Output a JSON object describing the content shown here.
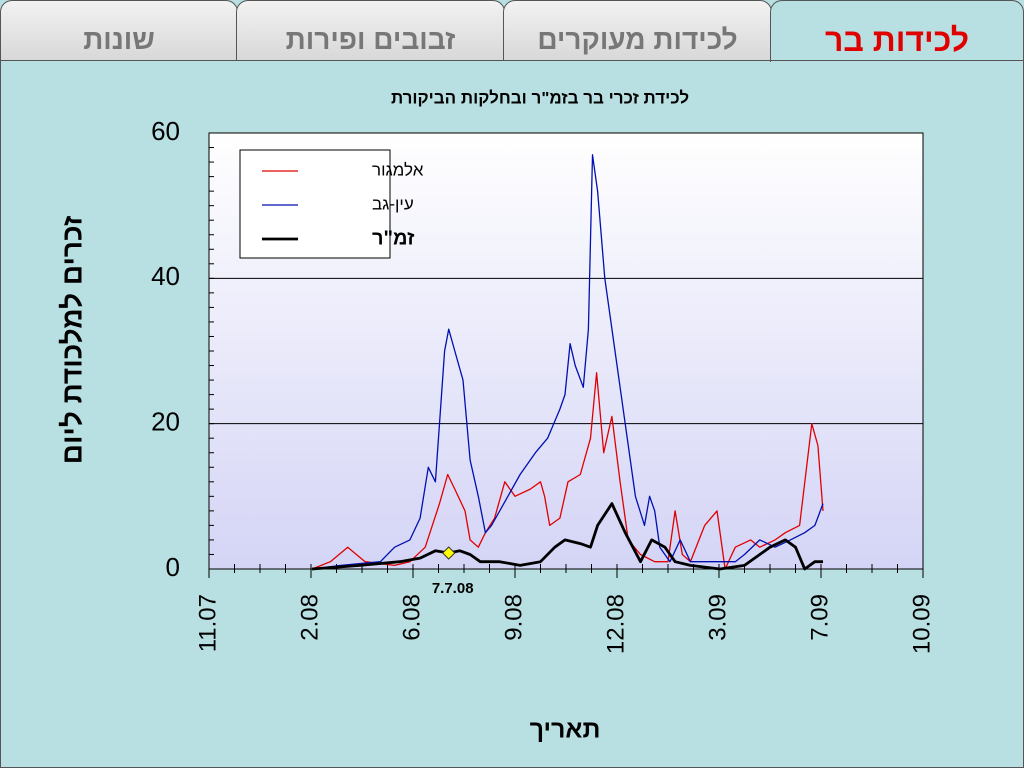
{
  "tabs": [
    "שונות",
    "זבובים ופירות",
    "לכידות מעוקרים",
    "לכידות בר"
  ],
  "active_tab": 3,
  "chart_data": {
    "type": "line",
    "title": "לכידת זכרי בר בזמ\"ר ובחלקות הביקורת",
    "y_label": "זכרים למלכודת ליום",
    "x_label": "תאריך",
    "ylim": [
      0,
      60
    ],
    "yticks": [
      0,
      20,
      40,
      60
    ],
    "grid": true,
    "xlim": [
      0,
      7
    ],
    "xticks": [
      {
        "value": 0,
        "label": "11.07"
      },
      {
        "value": 1,
        "label": "2.08"
      },
      {
        "value": 2,
        "label": "6.08"
      },
      {
        "value": 3,
        "label": "9.08"
      },
      {
        "value": 4,
        "label": "12.08"
      },
      {
        "value": 5,
        "label": "3.09"
      },
      {
        "value": 6,
        "label": "7.09"
      },
      {
        "value": 7,
        "label": "10.09"
      }
    ],
    "legend": "top-left",
    "series": [
      {
        "name": "אלמגור",
        "color": "#e00000",
        "width": 1.3,
        "x": [
          1.01,
          1.19,
          1.36,
          1.53,
          1.82,
          1.97,
          2.12,
          2.26,
          2.34,
          2.41,
          2.51,
          2.56,
          2.64,
          2.71,
          2.8,
          2.9,
          3.0,
          3.15,
          3.25,
          3.29,
          3.34,
          3.44,
          3.52,
          3.64,
          3.74,
          3.8,
          3.87,
          3.95,
          4.03,
          4.11,
          4.23,
          4.37,
          4.5,
          4.57,
          4.64,
          4.72,
          4.86,
          4.98,
          5.06,
          5.16,
          5.31,
          5.4,
          5.55,
          5.65,
          5.79,
          5.91,
          5.97,
          6.02
        ],
        "values": [
          0,
          1,
          3,
          1,
          0.5,
          1,
          3,
          9,
          13,
          11,
          8,
          4,
          3,
          5,
          7,
          12,
          10,
          11,
          12,
          10,
          6,
          7,
          12,
          13,
          18,
          27,
          16,
          21,
          12,
          4,
          2,
          1,
          1,
          8,
          2,
          1,
          6,
          8,
          0,
          3,
          4,
          3,
          4,
          5,
          6,
          20,
          17,
          8
        ]
      },
      {
        "name": "עין-גב",
        "color": "#0010b0",
        "width": 1.3,
        "x": [
          1.01,
          1.29,
          1.68,
          1.82,
          1.97,
          2.07,
          2.15,
          2.22,
          2.26,
          2.31,
          2.35,
          2.41,
          2.49,
          2.56,
          2.64,
          2.71,
          2.77,
          2.85,
          2.93,
          3.05,
          3.2,
          3.32,
          3.44,
          3.49,
          3.54,
          3.59,
          3.67,
          3.72,
          3.76,
          3.81,
          3.88,
          3.98,
          4.08,
          4.18,
          4.27,
          4.32,
          4.37,
          4.42,
          4.52,
          4.62,
          4.72,
          5.01,
          5.16,
          5.25,
          5.4,
          5.55,
          5.7,
          5.84,
          5.94,
          6.02
        ],
        "values": [
          0,
          0.5,
          1,
          3,
          4,
          7,
          14,
          12,
          20,
          30,
          33,
          30,
          26,
          15,
          10,
          5,
          6,
          8,
          10,
          13,
          16,
          18,
          22,
          24,
          31,
          28,
          25,
          33,
          57,
          52,
          40,
          30,
          20,
          10,
          6,
          10,
          8,
          3,
          1,
          4,
          1,
          1,
          1,
          2,
          4,
          3,
          4,
          5,
          6,
          9
        ]
      },
      {
        "name": "זמ\"ר",
        "color": "#000000",
        "width": 2.8,
        "x": [
          1.01,
          1.48,
          1.87,
          2.07,
          2.22,
          2.35,
          2.46,
          2.56,
          2.66,
          2.85,
          3.05,
          3.25,
          3.39,
          3.49,
          3.64,
          3.74,
          3.81,
          3.95,
          4.08,
          4.23,
          4.34,
          4.47,
          4.57,
          4.72,
          5.01,
          5.25,
          5.5,
          5.65,
          5.75,
          5.84,
          5.94,
          6.02
        ],
        "values": [
          0,
          0.5,
          1,
          1.5,
          2.5,
          2.2,
          2.5,
          2,
          1,
          1,
          0.5,
          1,
          3,
          4,
          3.5,
          3,
          6,
          9,
          5,
          1,
          4,
          3,
          1,
          0.5,
          0,
          0.5,
          3,
          4,
          3,
          0,
          1,
          1
        ]
      }
    ],
    "highlight": {
      "x": 2.35,
      "y": 2.2,
      "label": "7.7.08",
      "color": "#ffff00"
    }
  }
}
